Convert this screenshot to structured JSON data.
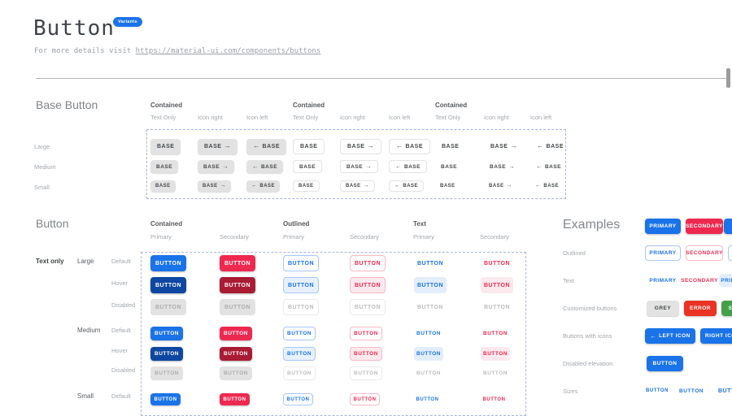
{
  "header": {
    "title": "Button",
    "badge": "Variants",
    "subtitle_prefix": "For more details visit",
    "link": "https://material-ui.com/components/buttons"
  },
  "colors": {
    "primary": "#1a73e8",
    "primary_hover": "#0d47a1",
    "secondary": "#ee2950",
    "secondary_hover": "#aa1b34",
    "error": "#ea3323",
    "success": "#43a047",
    "grey_button": "#e3e3e3",
    "badge": "#1a73e8"
  },
  "icons": {
    "arrow_left": "←",
    "arrow_right": "→"
  },
  "base_button": {
    "title": "Base Button",
    "group_header": "Contained",
    "subcolumns": [
      "Text Only",
      "Icon right",
      "Icon left"
    ],
    "sizes": [
      "Large",
      "Medium",
      "Small"
    ],
    "label": "BASE"
  },
  "button_section": {
    "title": "Button",
    "row_group_label": "Text only",
    "label": "BUTTON",
    "groups": [
      {
        "header": "Contained",
        "subcolumns": [
          "Primary",
          "Secondary"
        ]
      },
      {
        "header": "Outlined",
        "subcolumns": [
          "Primary",
          "Secondary"
        ]
      },
      {
        "header": "Text",
        "subcolumns": [
          "Primary",
          "Secondary"
        ]
      }
    ],
    "sizes": [
      {
        "name": "Large",
        "states": [
          "Default",
          "Hover",
          "Disabled"
        ]
      },
      {
        "name": "Medium",
        "states": [
          "Default",
          "Hover",
          "Disabled"
        ]
      },
      {
        "name": "Small",
        "states": [
          "Default"
        ]
      }
    ]
  },
  "examples": {
    "title": "Examples",
    "rows": [
      {
        "label": "",
        "buttons": [
          {
            "text": "PRIMARY",
            "style": "contained-primary"
          },
          {
            "text": "SECONDARY",
            "style": "contained-secondary"
          },
          {
            "text": "",
            "style": "contained-primary"
          }
        ]
      },
      {
        "label": "Outlined",
        "buttons": [
          {
            "text": "PRIMARY",
            "style": "outlined-primary"
          },
          {
            "text": "SECONDARY",
            "style": "outlined-secondary"
          },
          {
            "text": "",
            "style": "outlined-primary"
          }
        ]
      },
      {
        "label": "Text",
        "buttons": [
          {
            "text": "PRIMARY",
            "style": "text-primary"
          },
          {
            "text": "SECONDARY",
            "style": "text-secondary"
          },
          {
            "text": "PRIMARY",
            "style": "text-primary-hover"
          }
        ]
      },
      {
        "label": "Customized buttons",
        "buttons": [
          {
            "text": "GREY",
            "style": "grey"
          },
          {
            "text": "ERROR",
            "style": "error"
          },
          {
            "text": "SUCCESS",
            "style": "success"
          }
        ]
      },
      {
        "label": "Buttons with icons",
        "buttons": [
          {
            "text": "LEFT ICON",
            "style": "contained-primary",
            "icon": "left"
          },
          {
            "text": "RIGHT ICON",
            "style": "contained-primary",
            "icon": "right"
          }
        ]
      },
      {
        "label": "Disabled elevation",
        "buttons": [
          {
            "text": "BUTTON",
            "style": "contained-primary"
          }
        ]
      },
      {
        "label": "Sizes",
        "buttons": [
          {
            "text": "BUTTON",
            "style": "text-primary"
          },
          {
            "text": "BUTTON",
            "style": "text-primary"
          },
          {
            "text": "BUTTON",
            "style": "text-primary"
          }
        ]
      }
    ]
  }
}
